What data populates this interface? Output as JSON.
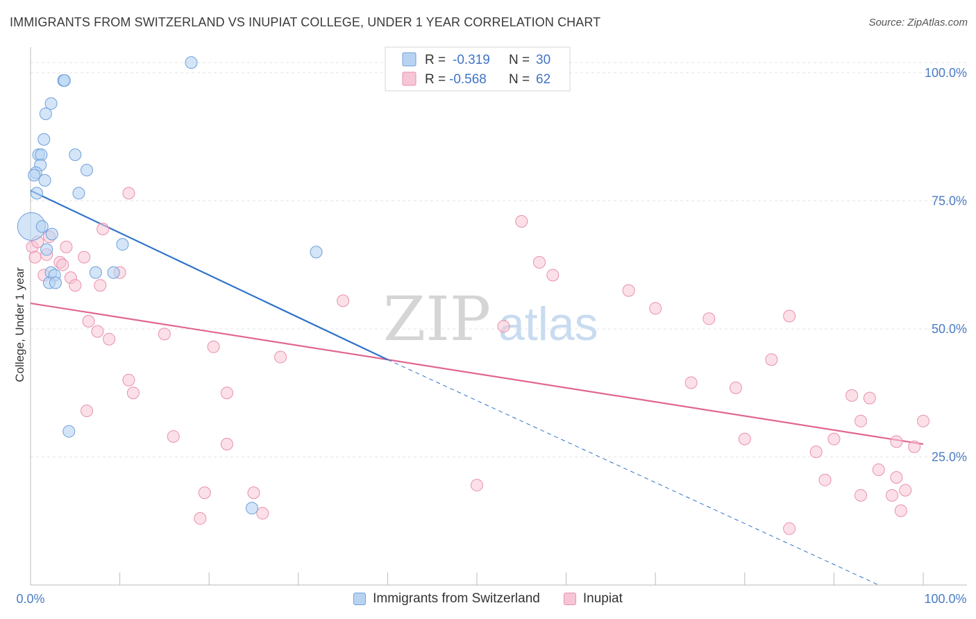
{
  "title": "IMMIGRANTS FROM SWITZERLAND VS INUPIAT COLLEGE, UNDER 1 YEAR CORRELATION CHART",
  "source": "Source: ZipAtlas.com",
  "watermark": {
    "zip": "ZIP",
    "atlas": "atlas"
  },
  "colors": {
    "blue_fill": "#b8d3f2",
    "blue_stroke": "#6c9fdc",
    "blue_line": "#2f72c9",
    "pink_fill": "#f7c6d6",
    "pink_stroke": "#e98fac",
    "pink_line": "#e06690",
    "tick_text": "#4a7cc4",
    "grid": "#e3e3e3"
  },
  "legend": {
    "rows": [
      {
        "r_label": "R =",
        "r_value": "-0.319",
        "n_label": "N =",
        "n_value": "30",
        "series": "blue"
      },
      {
        "r_label": "R =",
        "r_value": "-0.568",
        "n_label": "N =",
        "n_value": "62",
        "series": "pink"
      }
    ]
  },
  "chart_data": {
    "type": "scatter",
    "title": "IMMIGRANTS FROM SWITZERLAND VS INUPIAT COLLEGE, UNDER 1 YEAR CORRELATION CHART",
    "xlabel": "",
    "ylabel": "College, Under 1 year",
    "xlim": [
      0,
      100
    ],
    "ylim": [
      0,
      105
    ],
    "x_tick_labels": [
      "0.0%",
      "100.0%"
    ],
    "y_ticks": [
      25,
      50,
      75,
      100
    ],
    "y_tick_labels": [
      "25.0%",
      "50.0%",
      "75.0%",
      "100.0%"
    ],
    "series": [
      {
        "name": "Immigrants from Switzerland",
        "color": "blue",
        "points": [
          [
            18,
            102
          ],
          [
            3.7,
            98.5
          ],
          [
            3.8,
            98.5
          ],
          [
            2.3,
            94
          ],
          [
            1.7,
            92
          ],
          [
            1.5,
            87
          ],
          [
            0.9,
            84
          ],
          [
            1.2,
            84
          ],
          [
            5,
            84
          ],
          [
            1.1,
            82
          ],
          [
            6.3,
            81
          ],
          [
            0.6,
            80.5
          ],
          [
            0.4,
            80
          ],
          [
            1.6,
            79
          ],
          [
            5.4,
            76.5
          ],
          [
            0.7,
            76.5
          ],
          [
            0.1,
            70
          ],
          [
            1.3,
            70
          ],
          [
            2.4,
            68.5
          ],
          [
            10.3,
            66.5
          ],
          [
            1.8,
            65.5
          ],
          [
            32,
            65
          ],
          [
            2.3,
            61
          ],
          [
            7.3,
            61
          ],
          [
            9.3,
            61
          ],
          [
            2.7,
            60.5
          ],
          [
            2.1,
            59
          ],
          [
            2.8,
            59
          ],
          [
            4.3,
            30
          ],
          [
            24.8,
            15
          ]
        ],
        "trend": {
          "x": [
            0,
            40
          ],
          "y": [
            77,
            44
          ],
          "dashed_to": [
            95,
            0
          ]
        }
      },
      {
        "name": "Inupiat",
        "color": "pink",
        "points": [
          [
            11,
            76.5
          ],
          [
            0.2,
            66
          ],
          [
            8.1,
            69.5
          ],
          [
            0.8,
            67
          ],
          [
            2.1,
            68
          ],
          [
            4,
            66
          ],
          [
            1.8,
            64.5
          ],
          [
            6,
            64
          ],
          [
            3.3,
            63
          ],
          [
            3.6,
            62.5
          ],
          [
            1.5,
            60.5
          ],
          [
            10,
            61
          ],
          [
            4.5,
            60
          ],
          [
            5,
            58.5
          ],
          [
            7.8,
            58.5
          ],
          [
            55,
            71
          ],
          [
            57,
            63
          ],
          [
            58.5,
            60.5
          ],
          [
            67,
            57.5
          ],
          [
            35,
            55.5
          ],
          [
            70,
            54
          ],
          [
            76,
            52
          ],
          [
            85,
            52.5
          ],
          [
            6.5,
            51.5
          ],
          [
            7.5,
            49.5
          ],
          [
            53,
            50.5
          ],
          [
            15,
            49
          ],
          [
            8.8,
            48
          ],
          [
            20.5,
            46.5
          ],
          [
            28,
            44.5
          ],
          [
            83,
            44
          ],
          [
            11,
            40
          ],
          [
            11.5,
            37.5
          ],
          [
            22,
            37.5
          ],
          [
            74,
            39.5
          ],
          [
            79,
            38.5
          ],
          [
            92,
            37
          ],
          [
            94,
            36.5
          ],
          [
            6.3,
            34
          ],
          [
            93,
            32
          ],
          [
            100,
            32
          ],
          [
            16,
            29
          ],
          [
            80,
            28.5
          ],
          [
            90,
            28.5
          ],
          [
            97,
            28
          ],
          [
            22,
            27.5
          ],
          [
            88,
            26
          ],
          [
            99,
            27
          ],
          [
            50,
            19.5
          ],
          [
            89,
            20.5
          ],
          [
            95,
            22.5
          ],
          [
            97,
            21
          ],
          [
            19.5,
            18
          ],
          [
            25,
            18
          ],
          [
            93,
            17.5
          ],
          [
            96.5,
            17.5
          ],
          [
            98,
            18.5
          ],
          [
            19,
            13
          ],
          [
            26,
            14
          ],
          [
            97.5,
            14.5
          ],
          [
            85,
            11
          ],
          [
            0.5,
            64
          ]
        ],
        "trend": {
          "x": [
            0,
            100
          ],
          "y": [
            55,
            27.5
          ]
        }
      }
    ],
    "legend": [
      "Immigrants from Switzerland",
      "Inupiat"
    ],
    "legend_placement": "bottom-center"
  }
}
